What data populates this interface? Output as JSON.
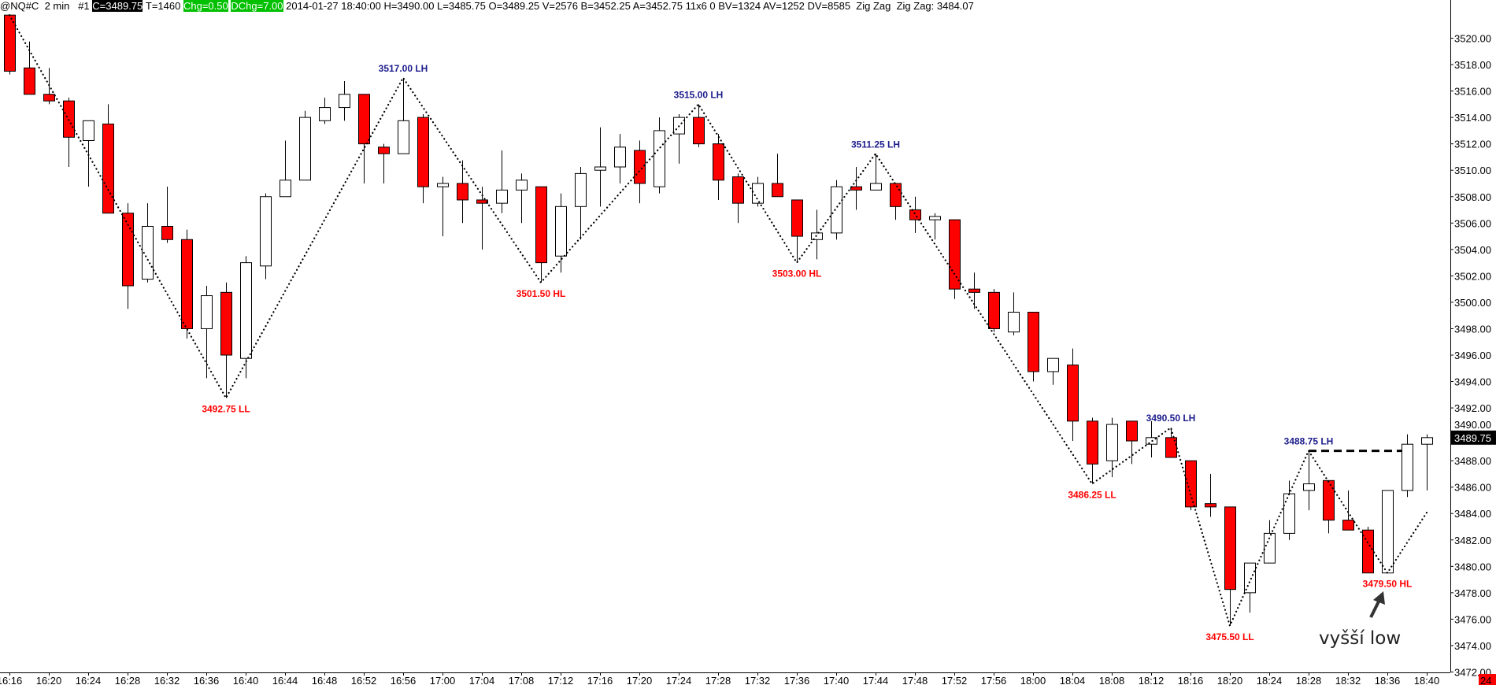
{
  "header": {
    "symbol": "@NQ#C",
    "interval": "2 min",
    "instance": "#1",
    "close": "C=3489.75",
    "ticks": "T=1460",
    "chg": "Chg=0.50",
    "dchg": "DChg=7.00",
    "details": "2014-01-27 18:40:00 H=3490.00 L=3485.75 O=3489.25 V=2576 B=3452.25 A=3452.75 11x6 0 BV=1324 AV=1252 DV=8585  Zig Zag  Zig Zag: 3484.07"
  },
  "colors": {
    "down": "#ff0000",
    "up": "#ffffff",
    "high_label": "#1c1c8c",
    "low_label": "#ff0000",
    "chg_bg": "#00c000"
  },
  "annotation": {
    "text": "vyšší low",
    "icon": "arrow-up-icon"
  },
  "corner_badge": "24",
  "chart_data": {
    "type": "candlestick",
    "title": "",
    "ylim": [
      3472,
      3521.75
    ],
    "y_ticks": [
      3472,
      3474,
      3476,
      3478,
      3480,
      3482,
      3484,
      3486,
      3488,
      3490,
      3492,
      3494,
      3496,
      3498,
      3500,
      3502,
      3504,
      3506,
      3508,
      3510,
      3512,
      3514,
      3516,
      3518,
      3520
    ],
    "last_price": "3489.75",
    "x_tick_labels": [
      "16:16",
      "16:20",
      "16:24",
      "16:28",
      "16:32",
      "16:36",
      "16:40",
      "16:44",
      "16:48",
      "16:52",
      "16:56",
      "17:00",
      "17:04",
      "17:08",
      "17:12",
      "17:16",
      "17:20",
      "17:24",
      "17:28",
      "17:32",
      "17:36",
      "17:40",
      "17:44",
      "17:48",
      "17:52",
      "17:56",
      "18:00",
      "18:04",
      "18:08",
      "18:12",
      "18:16",
      "18:20",
      "18:24",
      "18:28",
      "18:32",
      "18:36",
      "18:40"
    ],
    "ohlc_fields": [
      "open",
      "high",
      "low",
      "close"
    ],
    "candles": [
      [
        3521.75,
        3521.75,
        3517.25,
        3517.5
      ],
      [
        3517.75,
        3519.75,
        3515.75,
        3515.75
      ],
      [
        3515.75,
        3517.75,
        3515,
        3515.25
      ],
      [
        3515.25,
        3515.5,
        3510.25,
        3512.5
      ],
      [
        3512.25,
        3513.75,
        3508.75,
        3513.75
      ],
      [
        3513.5,
        3515,
        3506.75,
        3506.75
      ],
      [
        3506.75,
        3507.5,
        3499.5,
        3501.25
      ],
      [
        3501.75,
        3507.5,
        3501.5,
        3505.75
      ],
      [
        3505.75,
        3508.75,
        3504.5,
        3504.75
      ],
      [
        3504.75,
        3505.5,
        3497.25,
        3498
      ],
      [
        3498,
        3501.25,
        3494.25,
        3500.5
      ],
      [
        3500.75,
        3501.5,
        3492.75,
        3496
      ],
      [
        3495.75,
        3503.5,
        3494.25,
        3503
      ],
      [
        3502.75,
        3508.25,
        3501.75,
        3508
      ],
      [
        3508,
        3512.25,
        3508,
        3509.25
      ],
      [
        3509.25,
        3514.5,
        3509.25,
        3514
      ],
      [
        3513.75,
        3515.5,
        3513.5,
        3514.75
      ],
      [
        3514.75,
        3516.75,
        3513.75,
        3515.75
      ],
      [
        3515.75,
        3515.75,
        3509,
        3512
      ],
      [
        3511.75,
        3512,
        3509,
        3511.25
      ],
      [
        3511.25,
        3517,
        3511.25,
        3513.75
      ],
      [
        3514,
        3514.25,
        3507.5,
        3508.75
      ],
      [
        3508.75,
        3509.5,
        3505,
        3509
      ],
      [
        3509,
        3510.75,
        3506,
        3507.75
      ],
      [
        3507.75,
        3508.75,
        3504,
        3507.5
      ],
      [
        3507.5,
        3511.5,
        3506.75,
        3508.5
      ],
      [
        3508.5,
        3509.75,
        3506,
        3509.25
      ],
      [
        3508.75,
        3508.75,
        3501.5,
        3503
      ],
      [
        3503.5,
        3508.25,
        3502.25,
        3507.25
      ],
      [
        3507.25,
        3510.25,
        3504.75,
        3509.75
      ],
      [
        3510,
        3513.25,
        3507.25,
        3510.25
      ],
      [
        3510.25,
        3512.75,
        3509,
        3511.75
      ],
      [
        3511.5,
        3512.25,
        3507.5,
        3509
      ],
      [
        3508.75,
        3514,
        3508.25,
        3513
      ],
      [
        3512.75,
        3514.25,
        3510.5,
        3514
      ],
      [
        3514,
        3515,
        3511.75,
        3512
      ],
      [
        3512,
        3512.75,
        3507.75,
        3509.25
      ],
      [
        3509.5,
        3509.75,
        3506,
        3507.5
      ],
      [
        3507.5,
        3509.5,
        3507.25,
        3509
      ],
      [
        3509,
        3511.25,
        3508,
        3508
      ],
      [
        3507.75,
        3507.75,
        3503,
        3505
      ],
      [
        3504.75,
        3507,
        3503.25,
        3505.25
      ],
      [
        3505.25,
        3509.25,
        3504.75,
        3508.75
      ],
      [
        3508.75,
        3510.25,
        3507,
        3508.5
      ],
      [
        3508.5,
        3511.25,
        3508.5,
        3509
      ],
      [
        3509,
        3509,
        3506.25,
        3507.25
      ],
      [
        3507,
        3508,
        3505.25,
        3506.25
      ],
      [
        3506.25,
        3506.75,
        3504.75,
        3506.5
      ],
      [
        3506.25,
        3506.25,
        3500.25,
        3501
      ],
      [
        3501,
        3502.25,
        3499.5,
        3500.75
      ],
      [
        3500.75,
        3501,
        3497.75,
        3498
      ],
      [
        3497.75,
        3500.75,
        3497.5,
        3499.25
      ],
      [
        3499.25,
        3499.25,
        3494,
        3494.75
      ],
      [
        3494.75,
        3495.75,
        3493.75,
        3495.75
      ],
      [
        3495.25,
        3496.5,
        3489.5,
        3491
      ],
      [
        3491,
        3491.25,
        3486.25,
        3487.75
      ],
      [
        3488,
        3491.25,
        3486.75,
        3490.75
      ],
      [
        3491,
        3491,
        3487.75,
        3489.5
      ],
      [
        3489.25,
        3491,
        3488.25,
        3489.75
      ],
      [
        3489.75,
        3490.5,
        3488.25,
        3488.25
      ],
      [
        3488,
        3488,
        3484.25,
        3484.5
      ],
      [
        3484.75,
        3487,
        3483.75,
        3484.5
      ],
      [
        3484.5,
        3484.5,
        3475.5,
        3478.25
      ],
      [
        3478,
        3480.25,
        3476.5,
        3480.25
      ],
      [
        3480.25,
        3483.5,
        3480.25,
        3482.5
      ],
      [
        3482.5,
        3486.5,
        3482,
        3485.5
      ],
      [
        3485.75,
        3488.75,
        3484.25,
        3486.25
      ],
      [
        3486.5,
        3486.5,
        3482.5,
        3483.5
      ],
      [
        3483.5,
        3485.75,
        3482.75,
        3482.75
      ],
      [
        3482.75,
        3483,
        3479.5,
        3479.5
      ],
      [
        3479.5,
        3485.75,
        3479.5,
        3485.75
      ],
      [
        3485.75,
        3490,
        3485.25,
        3489.25
      ],
      [
        3489.25,
        3490,
        3485.75,
        3489.75
      ]
    ],
    "zigzag": [
      [
        0,
        3521.75
      ],
      [
        11,
        3492.75
      ],
      [
        20,
        3517
      ],
      [
        27,
        3501.5
      ],
      [
        35,
        3515
      ],
      [
        40,
        3503
      ],
      [
        44,
        3511.25
      ],
      [
        55,
        3486.25
      ],
      [
        59,
        3490.5
      ],
      [
        62,
        3475.5
      ],
      [
        66,
        3488.75
      ],
      [
        70,
        3479.5
      ],
      [
        72,
        3484.07
      ]
    ],
    "pivot_labels": [
      {
        "bar": 11,
        "text": "3492.75 LL",
        "kind": "low"
      },
      {
        "bar": 20,
        "text": "3517.00 LH",
        "kind": "high"
      },
      {
        "bar": 27,
        "text": "3501.50 HL",
        "kind": "low"
      },
      {
        "bar": 35,
        "text": "3515.00 LH",
        "kind": "high"
      },
      {
        "bar": 40,
        "text": "3503.00 HL",
        "kind": "low"
      },
      {
        "bar": 44,
        "text": "3511.25 LH",
        "kind": "high"
      },
      {
        "bar": 55,
        "text": "3486.25 LL",
        "kind": "low"
      },
      {
        "bar": 59,
        "text": "3490.50 LH",
        "kind": "high"
      },
      {
        "bar": 62,
        "text": "3475.50 LL",
        "kind": "low"
      },
      {
        "bar": 66,
        "text": "3488.75 LH",
        "kind": "high"
      },
      {
        "bar": 70,
        "text": "3479.50 HL",
        "kind": "low"
      }
    ],
    "level_line": {
      "price": 3488.75,
      "from_bar": 66,
      "to_bar": 71,
      "style": "dashed"
    }
  }
}
